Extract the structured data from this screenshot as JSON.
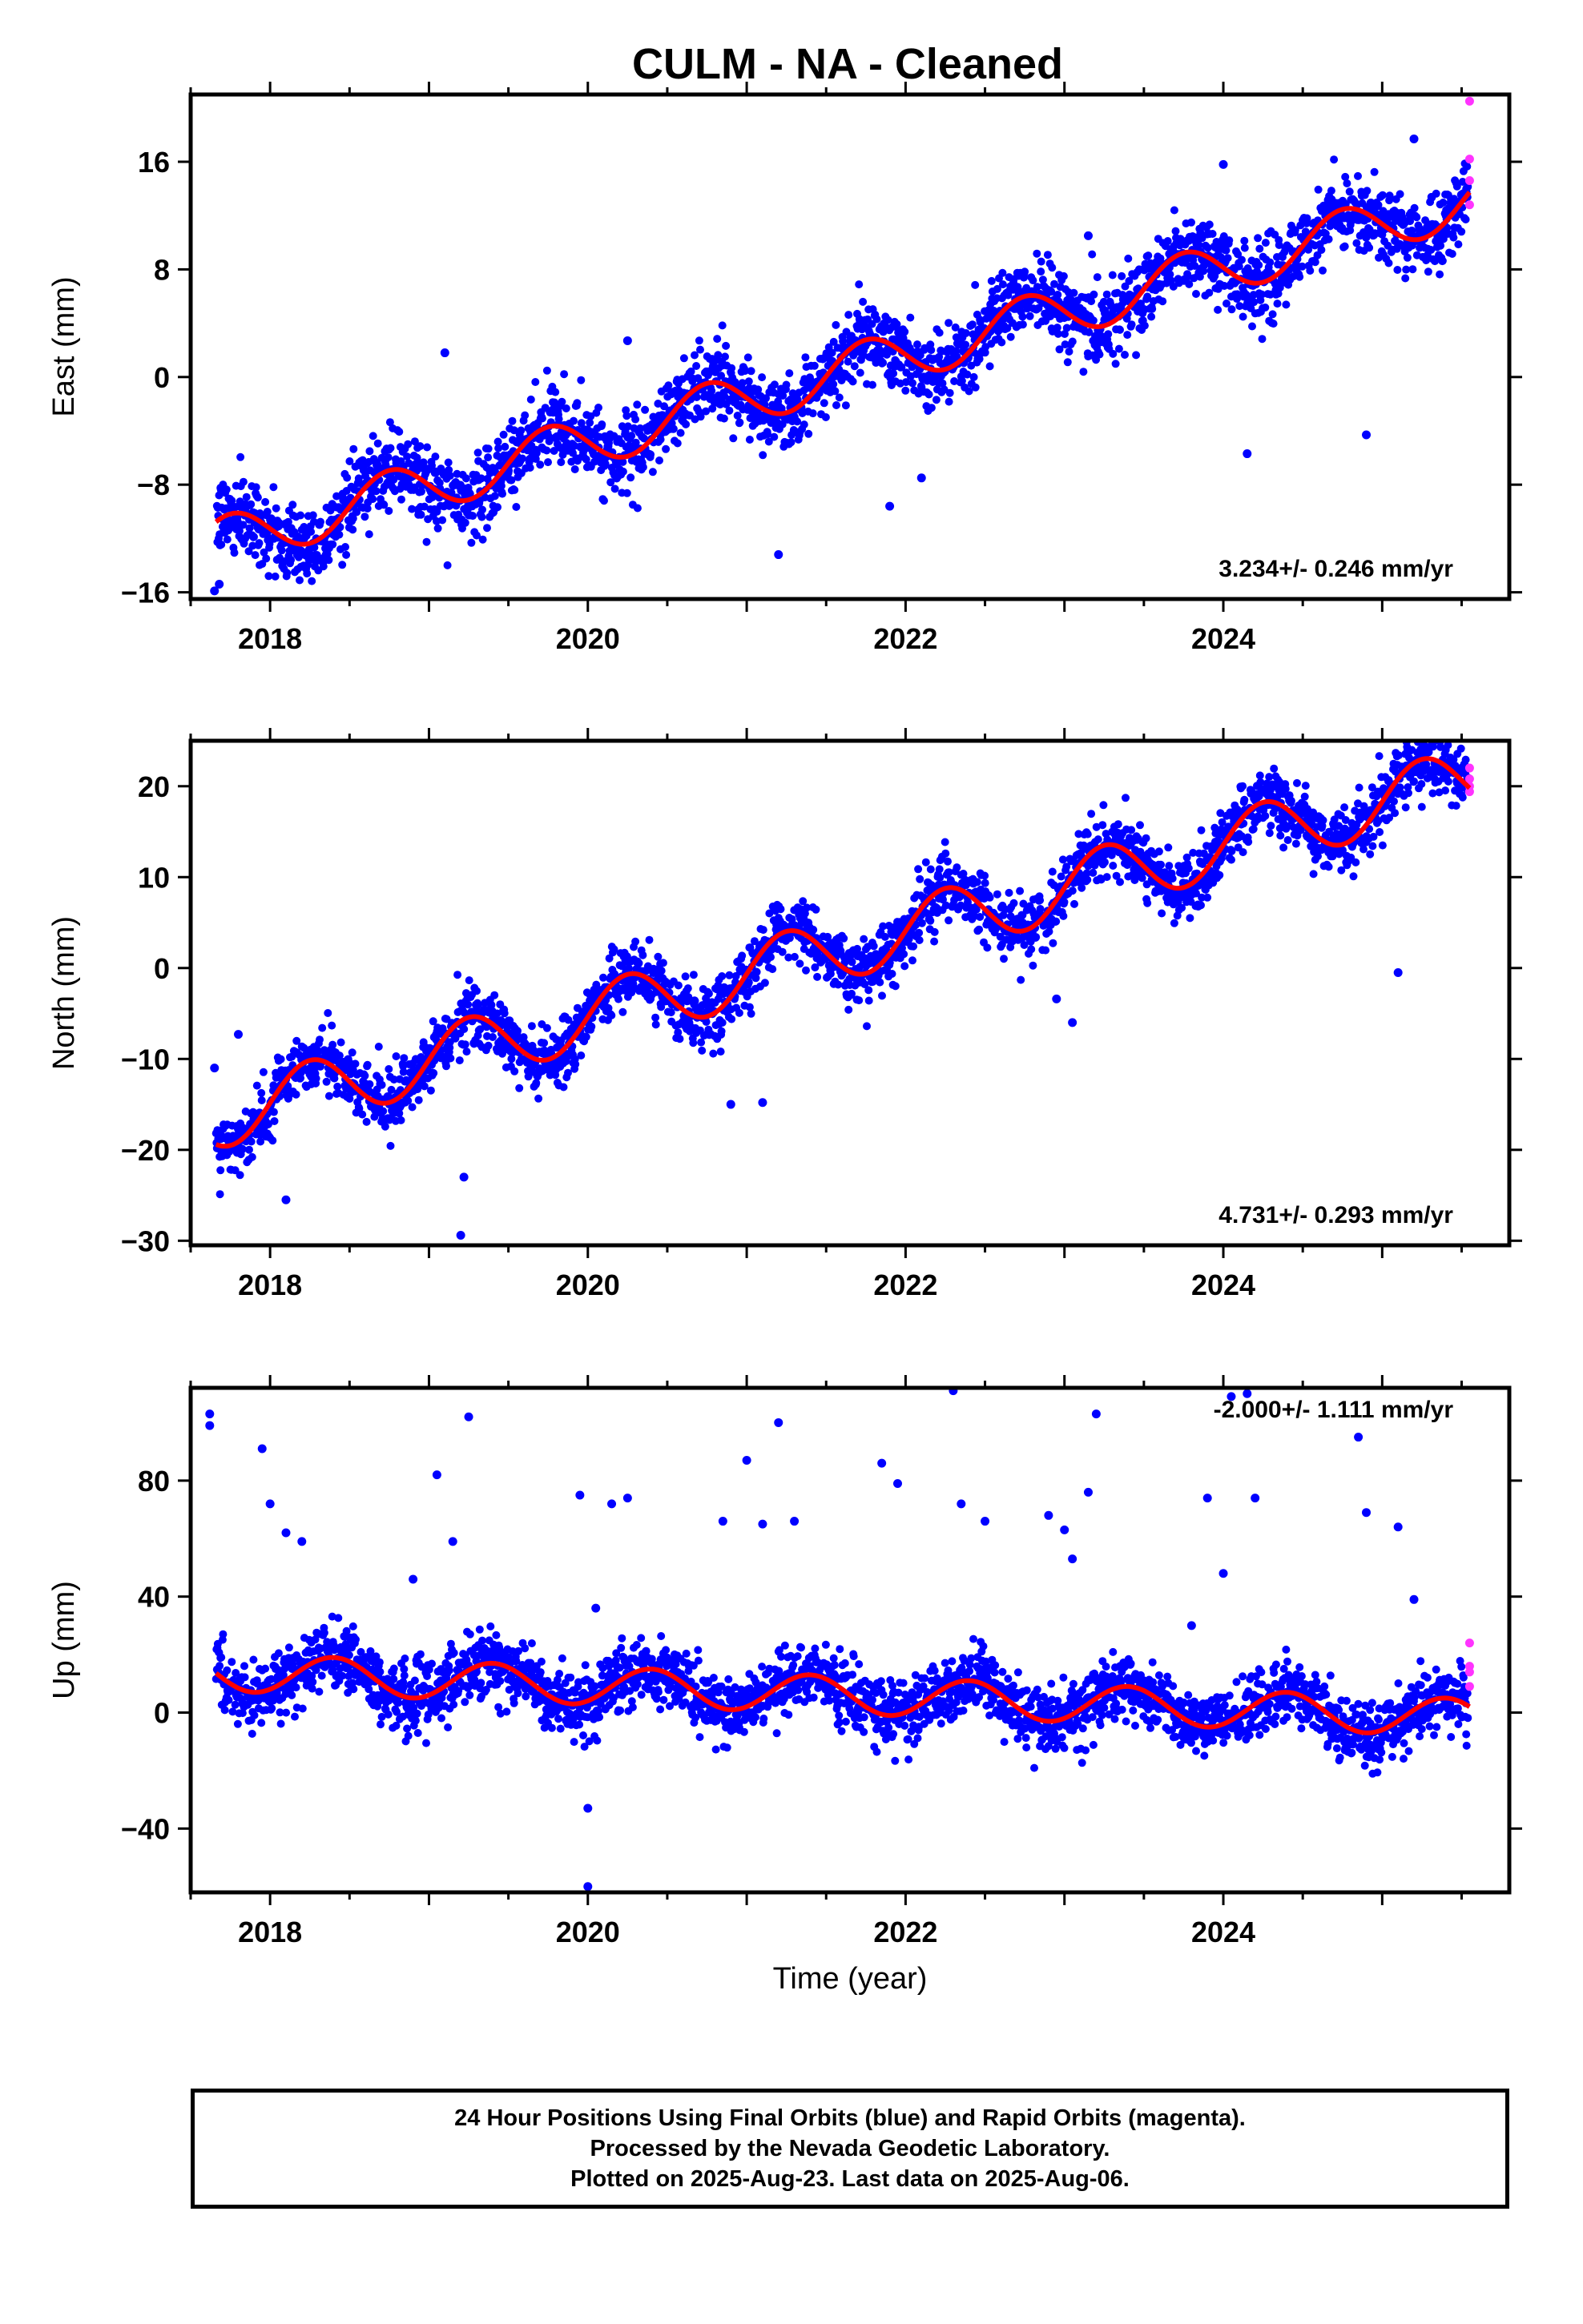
{
  "chart_data": [
    {
      "type": "scatter",
      "title": "CULM  - NA - Cleaned",
      "ylabel": "East (mm)",
      "xlabel": "",
      "xlim": [
        2017.5,
        2025.8
      ],
      "ylim": [
        -16.5,
        21
      ],
      "yticks": [
        -16,
        -8,
        0,
        8,
        16
      ],
      "xticks": [
        2018,
        2020,
        2022,
        2024
      ],
      "rate_label": "3.234+/- 0.246 mm/yr",
      "trend": {
        "t0": 2017.65,
        "y0": -12.4,
        "rate": 3.234,
        "amp": 1.9,
        "phase_peak": 0.1
      },
      "scatter_sd": 1.4,
      "colors": {
        "final": "#0000ff",
        "rapid": "#ff33ff",
        "model": "#ff0000"
      },
      "rapid_points": {
        "x": [
          2025.55,
          2025.55,
          2025.55,
          2025.55
        ],
        "y": [
          20.5,
          16.2,
          14.6,
          12.8
        ]
      },
      "outliers": {
        "x": [
          2017.65,
          2017.68,
          2019.1,
          2020.25,
          2021.2,
          2021.9,
          2022.1,
          2023.15,
          2024.0,
          2024.15,
          2024.9,
          2025.2
        ],
        "y": [
          -15.9,
          -15.4,
          1.8,
          2.7,
          -13.2,
          -9.6,
          -7.5,
          10.5,
          15.8,
          -5.7,
          -4.3,
          17.7
        ]
      }
    },
    {
      "type": "scatter",
      "title": "",
      "ylabel": "North (mm)",
      "xlabel": "",
      "xlim": [
        2017.5,
        2025.8
      ],
      "ylim": [
        -30.5,
        25
      ],
      "yticks": [
        -30,
        -20,
        -10,
        0,
        10,
        20
      ],
      "xticks": [
        2018,
        2020,
        2022,
        2024
      ],
      "rate_label": "4.731+/- 0.293 mm/yr",
      "trend": {
        "t0": 2017.65,
        "y0": -16.5,
        "rate": 4.731,
        "amp": 3.5,
        "phase_peak": 0.6
      },
      "scatter_sd": 1.7,
      "colors": {
        "final": "#0000ff",
        "rapid": "#ff33ff",
        "model": "#ff0000"
      },
      "rapid_points": {
        "x": [
          2025.55,
          2025.55,
          2025.55,
          2025.55
        ],
        "y": [
          22.0,
          20.8,
          20.0,
          19.4
        ]
      },
      "outliers": {
        "x": [
          2017.65,
          2017.8,
          2018.1,
          2019.2,
          2019.22,
          2020.9,
          2021.1,
          2022.95,
          2023.05,
          2025.1
        ],
        "y": [
          -11.0,
          -7.3,
          -25.5,
          -29.4,
          -23.0,
          -15.0,
          -14.8,
          -3.4,
          -6.0,
          -0.5
        ]
      }
    },
    {
      "type": "scatter",
      "title": "",
      "ylabel": "Up (mm)",
      "xlabel": "Time (year)",
      "xlim": [
        2017.5,
        2025.8
      ],
      "ylim": [
        -62,
        112
      ],
      "yticks": [
        -40,
        0,
        40,
        80
      ],
      "xticks": [
        2018,
        2020,
        2022,
        2024
      ],
      "rate_label": "-2.000+/- 1.111 mm/yr",
      "trend": {
        "t0": 2017.65,
        "y0": 14,
        "rate": -2.0,
        "amp": 6.5,
        "phase_peak": 0.75
      },
      "scatter_sd": 5.5,
      "colors": {
        "final": "#0000ff",
        "rapid": "#ff33ff",
        "model": "#ff0000"
      },
      "rapid_points": {
        "x": [
          2025.55,
          2025.55,
          2025.55,
          2025.55
        ],
        "y": [
          24,
          16,
          14,
          9
        ]
      },
      "outliers": {
        "x": [
          2017.62,
          2017.62,
          2017.95,
          2018.0,
          2018.1,
          2018.2,
          2018.9,
          2019.05,
          2019.15,
          2019.25,
          2019.95,
          2020.05,
          2020.15,
          2020.25,
          2020.85,
          2021.0,
          2021.1,
          2021.2,
          2021.3,
          2021.85,
          2021.95,
          2022.3,
          2022.35,
          2022.5,
          2022.9,
          2023.0,
          2023.05,
          2023.15,
          2023.2,
          2023.8,
          2023.9,
          2024.0,
          2024.05,
          2024.15,
          2024.2,
          2024.85,
          2024.9,
          2025.1,
          2025.2,
          2020.0,
          2020.0
        ],
        "y": [
          103,
          99,
          91,
          72,
          62,
          59,
          46,
          82,
          59,
          102,
          75,
          36,
          72,
          74,
          66,
          87,
          65,
          100,
          66,
          86,
          79,
          111,
          72,
          66,
          68,
          63,
          53,
          76,
          103,
          30,
          74,
          48,
          109,
          110,
          74,
          95,
          69,
          64,
          39,
          -60,
          -33
        ]
      }
    }
  ],
  "footer": {
    "line1": "24 Hour Positions Using Final Orbits (blue) and Rapid Orbits (magenta).",
    "line2": "Processed by the Nevada Geodetic Laboratory.",
    "line3": "Plotted on 2025-Aug-23. Last data on 2025-Aug-06."
  }
}
